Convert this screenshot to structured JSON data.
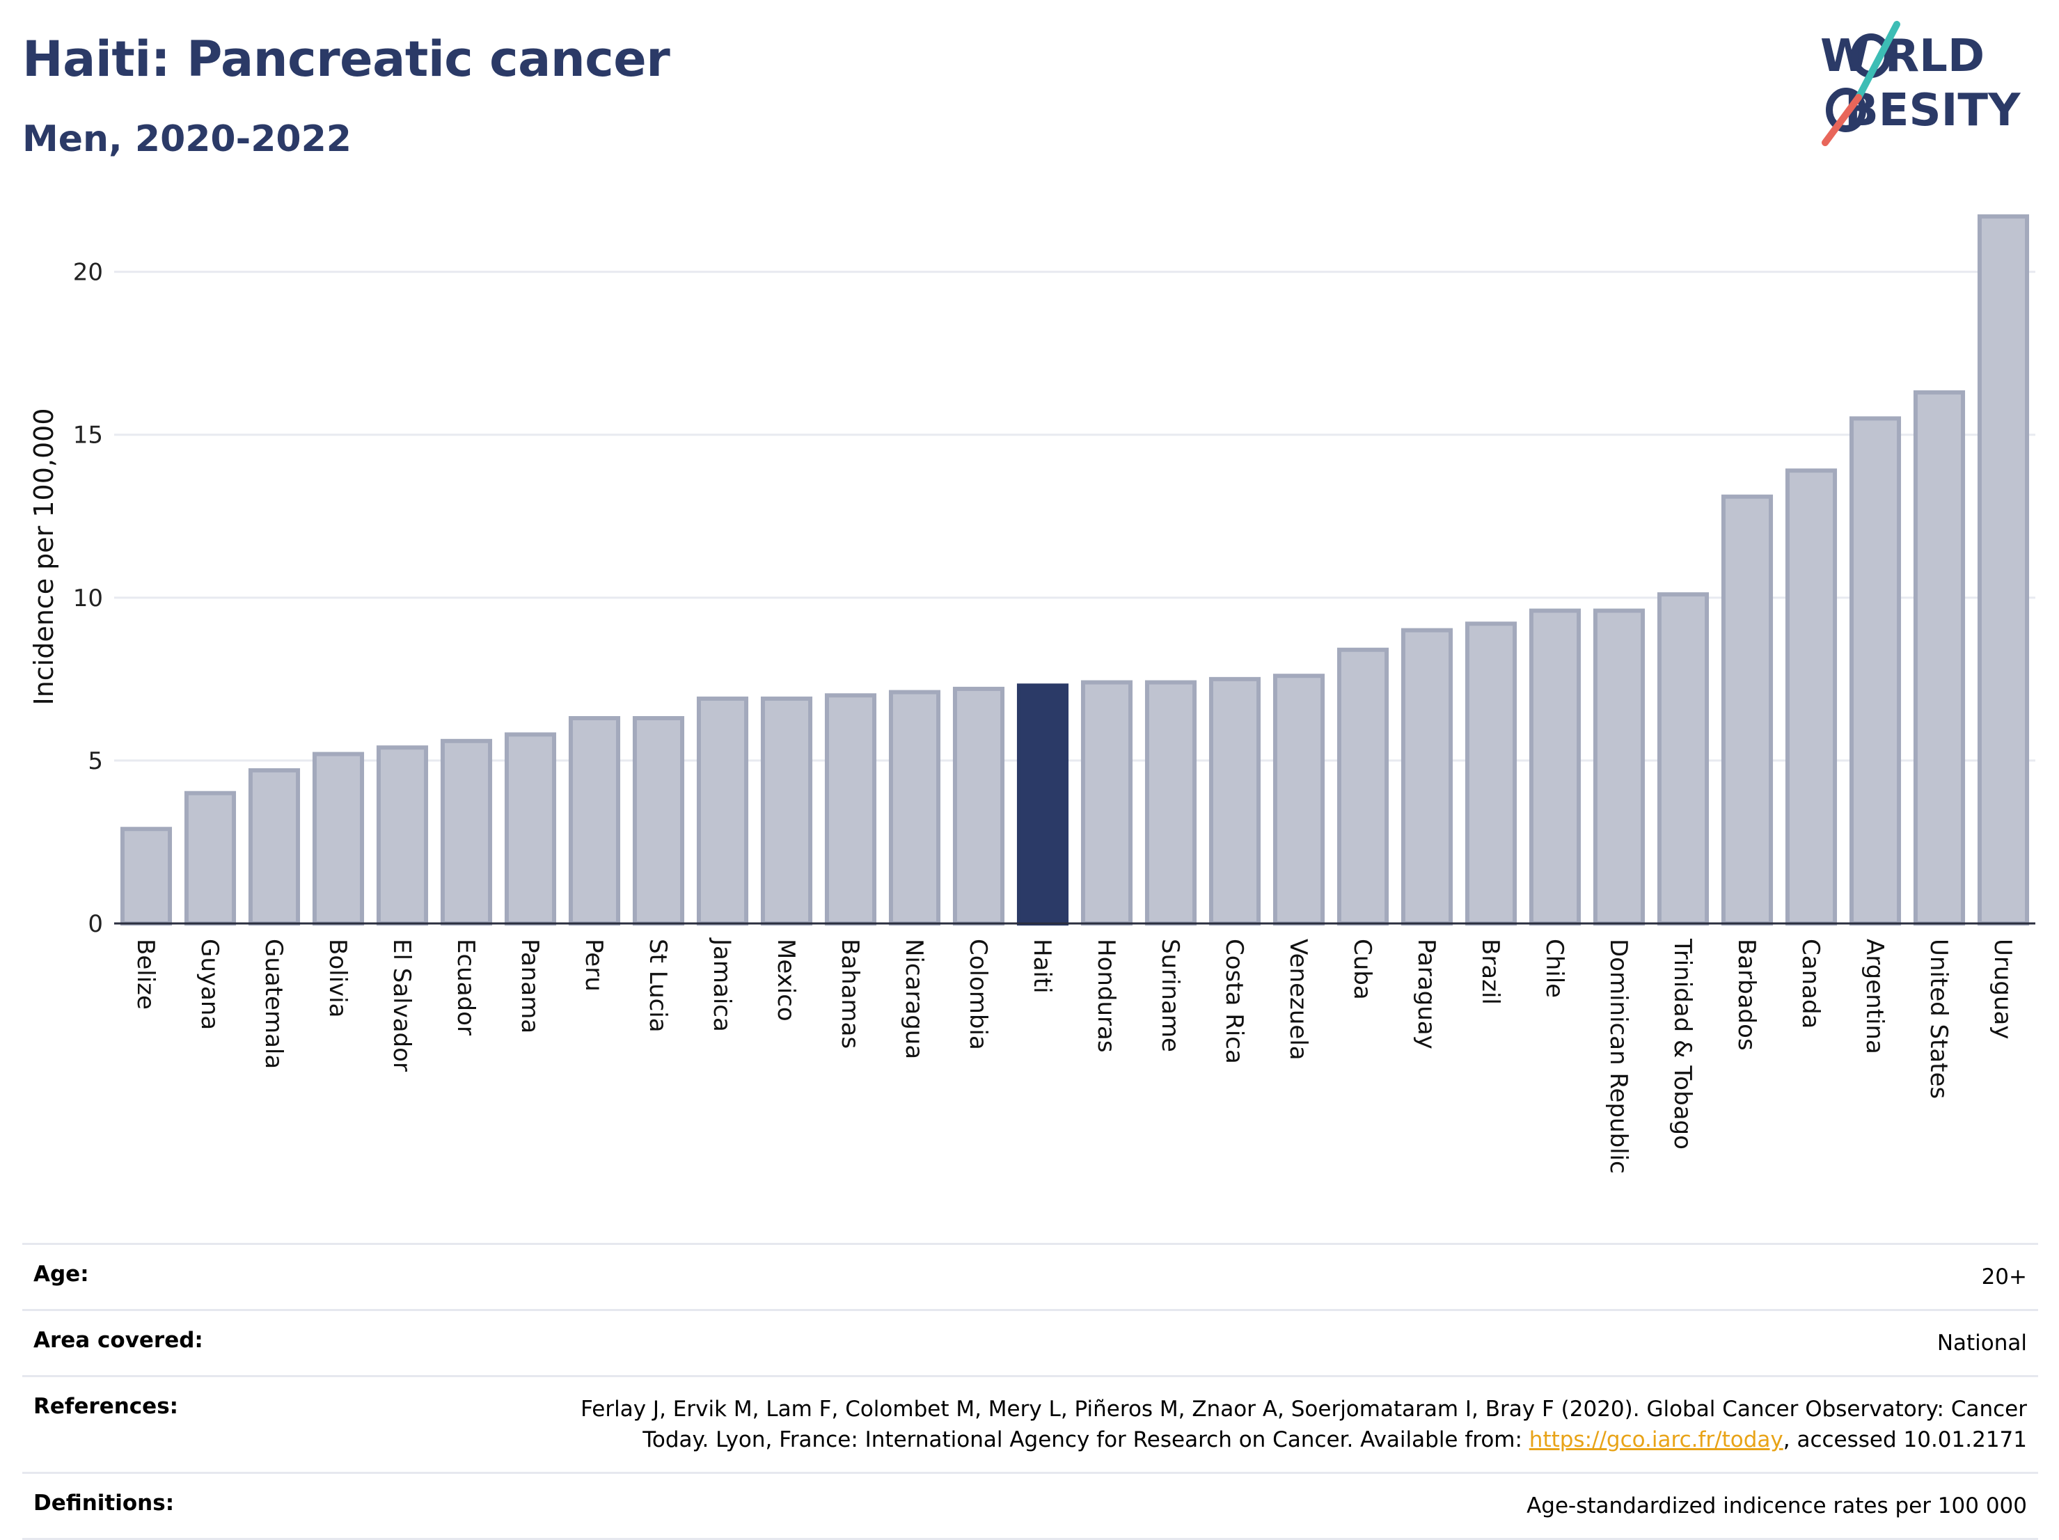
{
  "header": {
    "title": "Haiti: Pancreatic cancer",
    "subtitle": "Men, 2020-2022"
  },
  "logo": {
    "line1": "W RLD",
    "line2": "BESITY",
    "brand_color": "#2b3a67",
    "accent_teal": "#3dbdb5",
    "accent_red": "#e8665a"
  },
  "colors": {
    "bar": "#bfc3d0",
    "bar_stroke": "#a3a9bc",
    "highlight": "#2b3a67",
    "grid": "#e8eaf0"
  },
  "chart_data": {
    "type": "bar",
    "title": "Haiti: Pancreatic cancer",
    "subtitle": "Men, 2020-2022",
    "xlabel": "",
    "ylabel": "Incidence per 100,000",
    "ylim": [
      0,
      22
    ],
    "yticks": [
      0,
      5,
      10,
      15,
      20
    ],
    "grid": true,
    "highlight": "Haiti",
    "categories": [
      "Belize",
      "Guyana",
      "Guatemala",
      "Bolivia",
      "El Salvador",
      "Ecuador",
      "Panama",
      "Peru",
      "St Lucia",
      "Jamaica",
      "Mexico",
      "Bahamas",
      "Nicaragua",
      "Colombia",
      "Haiti",
      "Honduras",
      "Suriname",
      "Costa Rica",
      "Venezuela",
      "Cuba",
      "Paraguay",
      "Brazil",
      "Chile",
      "Dominican Republic",
      "Trinidad & Tobago",
      "Barbados",
      "Canada",
      "Argentina",
      "United States",
      "Uruguay"
    ],
    "values": [
      2.9,
      4.0,
      4.7,
      5.2,
      5.4,
      5.6,
      5.8,
      6.3,
      6.3,
      6.9,
      6.9,
      7.0,
      7.1,
      7.2,
      7.3,
      7.4,
      7.4,
      7.5,
      7.6,
      8.4,
      9.0,
      9.2,
      9.6,
      9.6,
      10.1,
      13.1,
      13.9,
      15.5,
      16.3,
      21.7
    ]
  },
  "meta": {
    "age_label": "Age:",
    "age_value": "20+",
    "area_label": "Area covered:",
    "area_value": "National",
    "references_label": "References:",
    "references_text_1": "Ferlay J, Ervik M, Lam F, Colombet M, Mery L, Piñeros M, Znaor A, Soerjomataram I, Bray F (2020). Global Cancer Observatory: Cancer Today. Lyon, France: International Agency for Research on Cancer. Available from: ",
    "references_link": "https://gco.iarc.fr/today",
    "references_text_2": ", accessed 10.01.2171",
    "definitions_label": "Definitions:",
    "definitions_value": "Age-standardized indicence rates per 100 000"
  }
}
